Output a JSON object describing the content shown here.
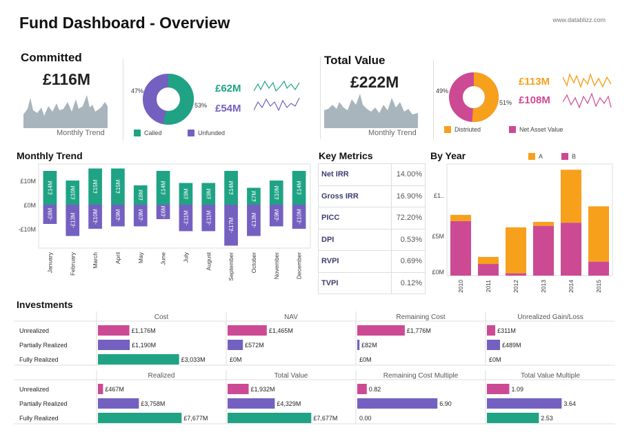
{
  "header": {
    "title": "Fund Dashboard - Overview",
    "watermark": "www.datablizz.com"
  },
  "colors": {
    "teal": "#1fa384",
    "purple": "#7460c0",
    "magenta": "#cc4a93",
    "orange": "#f7a01c",
    "grey": "#a9b5bc"
  },
  "committed": {
    "title": "Committed",
    "value": "£116M",
    "trend_label": "Monthly Trend",
    "donut_left_pct": "47%",
    "donut_right_pct": "53%",
    "called_value": "£62M",
    "unfunded_value": "£54M",
    "legend_called": "Called",
    "legend_unfunded": "Unfunded",
    "called_share": 0.53
  },
  "total_value": {
    "title": "Total Value",
    "value": "£222M",
    "trend_label": "Monthly Trend",
    "donut_left_pct": "49%",
    "donut_right_pct": "51%",
    "distributed_value": "£113M",
    "nav_value": "£108M",
    "legend_distributed": "Distriuted",
    "legend_nav": "Net Asset Value",
    "distributed_share": 0.51
  },
  "monthly_trend": {
    "title": "Monthly Trend",
    "y_ticks": [
      "£10M",
      "£0M",
      "-£10M"
    ],
    "chart_data": {
      "type": "bar",
      "categories": [
        "January",
        "February",
        "March",
        "April",
        "May",
        "June",
        "July",
        "August",
        "September",
        "October",
        "November",
        "December"
      ],
      "series": [
        {
          "values": [
            14,
            10,
            15,
            15,
            8,
            14,
            9,
            9,
            14,
            7,
            10,
            14
          ],
          "labels": [
            "£14M",
            "£10M",
            "£15M",
            "£15M",
            "£8M",
            "£14M",
            "£9M",
            "£9M",
            "£14M",
            "£7M",
            "£10M",
            "£14M"
          ]
        },
        {
          "values": [
            -8,
            -13,
            -10,
            -9,
            -9,
            -6,
            -11,
            -11,
            -17,
            -13,
            -9,
            -10
          ],
          "labels": [
            "-£8M",
            "-£13M",
            "-£10M",
            "-£9M",
            "-£9M",
            "-£6M",
            "-£11M",
            "-£11M",
            "-£17M",
            "-£13M",
            "-£9M",
            "-£10M"
          ]
        }
      ],
      "ylim": [
        -18,
        16
      ]
    }
  },
  "key_metrics": {
    "title": "Key Metrics",
    "rows": [
      {
        "label": "Net IRR",
        "value": "14.00%"
      },
      {
        "label": "Gross IRR",
        "value": "16.90%"
      },
      {
        "label": "PICC",
        "value": "72.20%"
      },
      {
        "label": "DPI",
        "value": "0.53%"
      },
      {
        "label": "RVPI",
        "value": "0.69%"
      },
      {
        "label": "TVPI",
        "value": "0.12%"
      }
    ]
  },
  "by_year": {
    "title": "By Year",
    "legend_a": "A",
    "legend_b": "B",
    "y_ticks": [
      "£1..",
      "£5M",
      "£0M"
    ],
    "chart_data": {
      "type": "bar",
      "stacked": true,
      "categories": [
        "2010",
        "2011",
        "2012",
        "2013",
        "2014",
        "2015"
      ],
      "series": [
        {
          "name": "B",
          "values": [
            7.0,
            1.5,
            0.3,
            6.4,
            6.8,
            1.8
          ]
        },
        {
          "name": "A",
          "values": [
            0.8,
            0.9,
            5.9,
            0.5,
            6.8,
            7.1
          ]
        }
      ],
      "ylim": [
        0,
        14
      ]
    }
  },
  "investments": {
    "title": "Investments",
    "rows": [
      "Unrealized",
      "Partially Realized",
      "Fully Realized"
    ],
    "top": [
      {
        "header": "Cost",
        "values": [
          1176,
          1190,
          3033
        ],
        "labels": [
          "£1,176M",
          "£1,190M",
          "£3,033M"
        ],
        "max": 3300
      },
      {
        "header": "NAV",
        "values": [
          1465,
          572,
          0
        ],
        "labels": [
          "£1,465M",
          "£572M",
          "£0M"
        ],
        "max": 3300
      },
      {
        "header": "Remaining Cost",
        "values": [
          1776,
          82,
          0
        ],
        "labels": [
          "£1,776M",
          "£82M",
          "£0M"
        ],
        "max": 3300
      },
      {
        "header": "Unrealized Gain/Loss",
        "values": [
          311,
          489,
          0
        ],
        "labels": [
          "£311M",
          "£489M",
          "£0M"
        ],
        "max": 3300
      }
    ],
    "bottom": [
      {
        "header": "Realized",
        "values": [
          467,
          3758,
          7677
        ],
        "labels": [
          "£467M",
          "£3,758M",
          "£7,677M"
        ],
        "max": 8100
      },
      {
        "header": "Total Value",
        "values": [
          1932,
          4329,
          7677
        ],
        "labels": [
          "£1,932M",
          "£4,329M",
          "£7,677M"
        ],
        "max": 8100
      },
      {
        "header": "Remaining Cost Multiple",
        "values": [
          0.82,
          6.9,
          0.0
        ],
        "labels": [
          "0.82",
          "6.90",
          "0.00"
        ],
        "max": 7.6
      },
      {
        "header": "Total Value Multiple",
        "values": [
          1.09,
          3.64,
          2.53
        ],
        "labels": [
          "1.09",
          "3.64",
          "2.53"
        ],
        "max": 4.3
      }
    ]
  }
}
